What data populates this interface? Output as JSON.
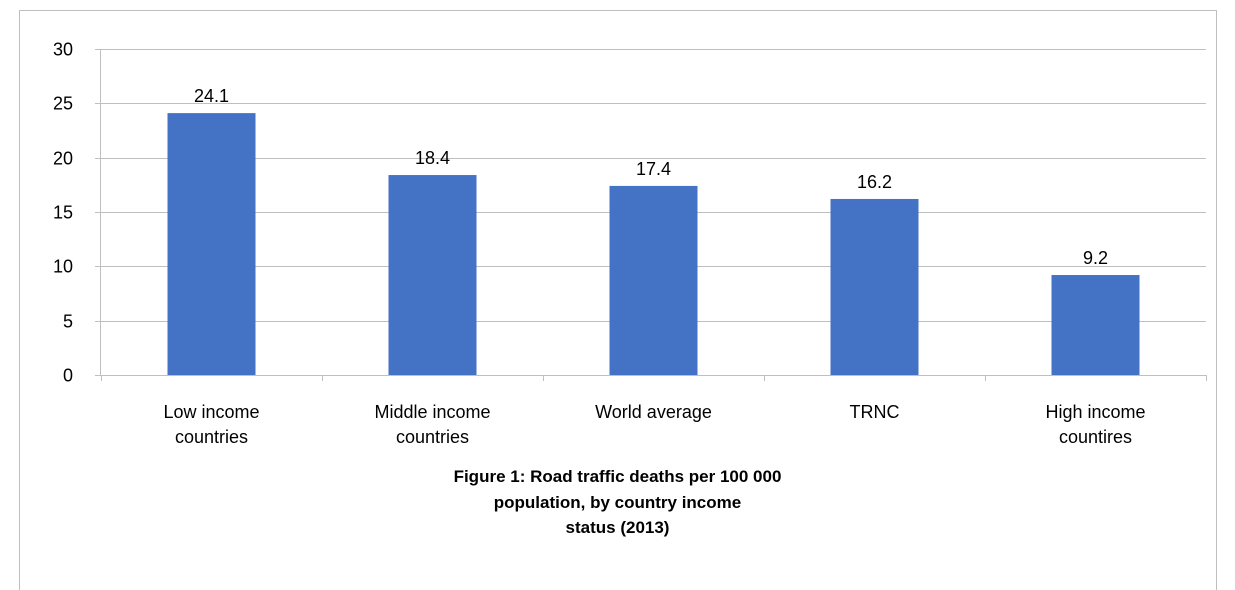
{
  "chart_data": {
    "type": "bar",
    "categories": [
      [
        "Low income",
        "countries"
      ],
      [
        "Middle income",
        "countries"
      ],
      [
        "World average"
      ],
      [
        "TRNC"
      ],
      [
        "High income",
        "countires"
      ]
    ],
    "values": [
      24.1,
      18.4,
      17.4,
      16.2,
      9.2
    ],
    "data_labels": [
      "24.1",
      "18.4",
      "17.4",
      "16.2",
      "9.2"
    ],
    "ylim": [
      0,
      30
    ],
    "yticks": [
      0,
      5,
      10,
      15,
      20,
      25,
      30
    ],
    "grid": true,
    "bar_color": "#4472c4",
    "gridline_color": "#bfbfbf",
    "title": ""
  },
  "caption": {
    "line1": "Figure 1: Road traffic deaths per 100 000",
    "line2": "population, by country income",
    "line3": "status  (2013)"
  }
}
